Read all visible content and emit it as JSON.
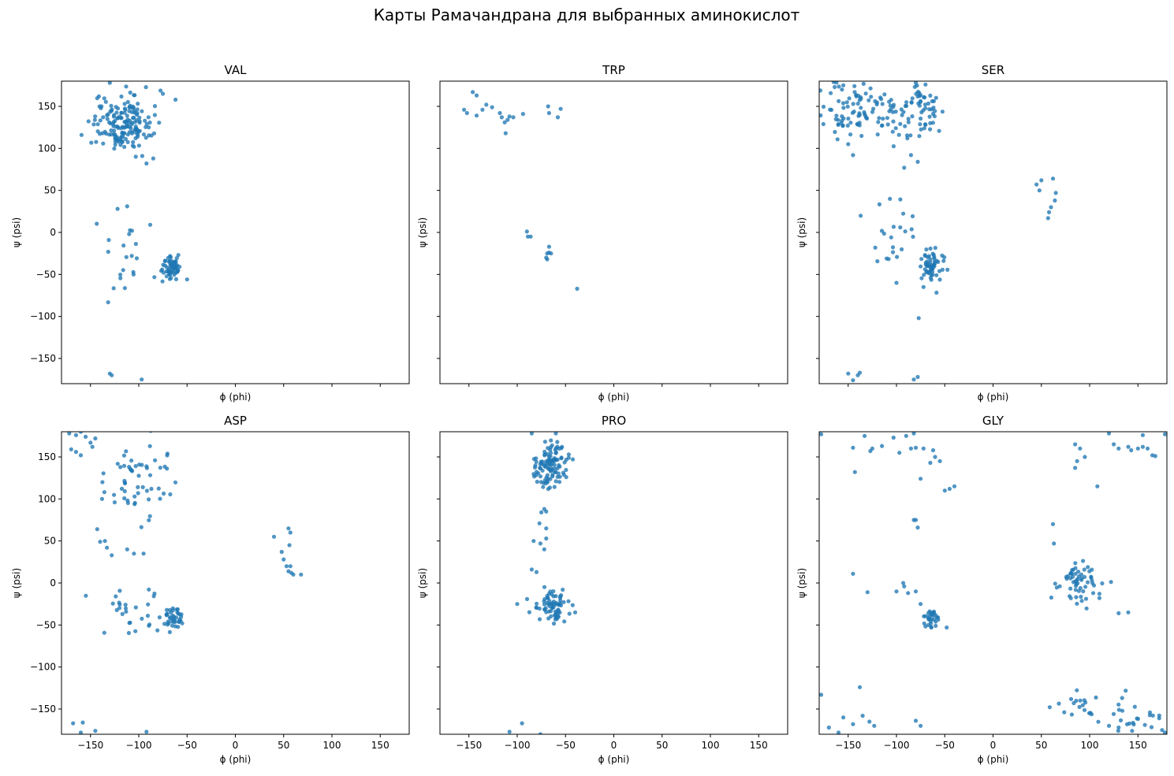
{
  "figure": {
    "title": "Карты Рамачандрана для выбранных аминокислот"
  },
  "colors": {
    "point": "#1f77b4",
    "axis": "#000000"
  },
  "chart_data": [
    {
      "type": "scatter",
      "title": "VAL",
      "xlabel": "ϕ (phi)",
      "ylabel": "ψ (psi)",
      "xlim": [
        -180,
        180
      ],
      "ylim": [
        -180,
        180
      ],
      "x_ticks": [
        -150,
        -100,
        -50,
        0,
        50,
        100,
        150
      ],
      "y_ticks": [
        -150,
        -100,
        -50,
        0,
        50,
        100,
        150
      ],
      "show_x_tick_labels": false,
      "show_y_tick_labels": true,
      "grid": false,
      "clusters": [
        {
          "phi": -118,
          "psi": 130,
          "sd_phi": 15,
          "sd_psi": 16,
          "n": 170
        },
        {
          "phi": -65,
          "psi": -42,
          "sd_phi": 6,
          "sd_psi": 7,
          "n": 60
        },
        {
          "phi": -115,
          "psi": -38,
          "sd_phi": 15,
          "sd_psi": 25,
          "n": 18
        }
      ],
      "points": [
        {
          "phi": -130,
          "psi": 178
        },
        {
          "phi": -75,
          "psi": 165
        },
        {
          "phi": -62,
          "psi": 158
        },
        {
          "phi": -92,
          "psi": 82
        },
        {
          "phi": -85,
          "psi": 88
        },
        {
          "phi": -122,
          "psi": 28
        },
        {
          "phi": -112,
          "psi": 31
        },
        {
          "phi": -110,
          "psi": -2
        },
        {
          "phi": -107,
          "psi": 2
        },
        {
          "phi": -131,
          "psi": -9
        },
        {
          "phi": -128,
          "psi": -170
        },
        {
          "phi": -130,
          "psi": -168
        },
        {
          "phi": -97,
          "psi": -175
        },
        {
          "phi": -50,
          "psi": -56
        }
      ]
    },
    {
      "type": "scatter",
      "title": "TRP",
      "xlabel": "ϕ (phi)",
      "ylabel": "ψ (psi)",
      "xlim": [
        -180,
        180
      ],
      "ylim": [
        -180,
        180
      ],
      "x_ticks": [
        -150,
        -100,
        -50,
        0,
        50,
        100,
        150
      ],
      "y_ticks": [
        -150,
        -100,
        -50,
        0,
        50,
        100,
        150
      ],
      "show_x_tick_labels": false,
      "show_y_tick_labels": false,
      "grid": false,
      "clusters": [],
      "points": [
        {
          "phi": -146,
          "psi": 167
        },
        {
          "phi": -142,
          "psi": 163
        },
        {
          "phi": -155,
          "psi": 146
        },
        {
          "phi": -152,
          "psi": 142
        },
        {
          "phi": -132,
          "psi": 152
        },
        {
          "phi": -126,
          "psi": 149
        },
        {
          "phi": -136,
          "psi": 146
        },
        {
          "phi": -142,
          "psi": 139
        },
        {
          "phi": -118,
          "psi": 142
        },
        {
          "phi": -116,
          "psi": 137
        },
        {
          "phi": -113,
          "psi": 131
        },
        {
          "phi": -110,
          "psi": 134
        },
        {
          "phi": -108,
          "psi": 138
        },
        {
          "phi": -104,
          "psi": 137
        },
        {
          "phi": -94,
          "psi": 141
        },
        {
          "phi": -112,
          "psi": 118
        },
        {
          "phi": -68,
          "psi": 150
        },
        {
          "phi": -67,
          "psi": 142
        },
        {
          "phi": -55,
          "psi": 147
        },
        {
          "phi": -58,
          "psi": 137
        },
        {
          "phi": -90,
          "psi": 1
        },
        {
          "phi": -89,
          "psi": -5
        },
        {
          "phi": -86,
          "psi": -5
        },
        {
          "phi": -67,
          "psi": -17
        },
        {
          "phi": -67,
          "psi": -24
        },
        {
          "phi": -69,
          "psi": -25
        },
        {
          "phi": -65,
          "psi": -25
        },
        {
          "phi": -70,
          "psi": -30
        },
        {
          "phi": -69,
          "psi": -32
        },
        {
          "phi": -38,
          "psi": -67
        }
      ]
    },
    {
      "type": "scatter",
      "title": "SER",
      "xlabel": "ϕ (phi)",
      "ylabel": "ψ (psi)",
      "xlim": [
        -180,
        180
      ],
      "ylim": [
        -180,
        180
      ],
      "x_ticks": [
        -150,
        -100,
        -50,
        0,
        50,
        100,
        150
      ],
      "y_ticks": [
        -150,
        -100,
        -50,
        0,
        50,
        100,
        150
      ],
      "show_x_tick_labels": false,
      "show_y_tick_labels": false,
      "grid": false,
      "clusters": [
        {
          "phi": -150,
          "psi": 150,
          "sd_phi": 14,
          "sd_psi": 18,
          "n": 70
        },
        {
          "phi": -105,
          "psi": 140,
          "sd_phi": 14,
          "sd_psi": 14,
          "n": 45
        },
        {
          "phi": -70,
          "psi": 150,
          "sd_phi": 10,
          "sd_psi": 16,
          "n": 45
        },
        {
          "phi": -65,
          "psi": -38,
          "sd_phi": 7,
          "sd_psi": 10,
          "n": 60
        },
        {
          "phi": -100,
          "psi": -5,
          "sd_phi": 15,
          "sd_psi": 22,
          "n": 22
        }
      ],
      "points": [
        {
          "phi": -165,
          "psi": 179
        },
        {
          "phi": -155,
          "psi": 175
        },
        {
          "phi": -80,
          "psi": 178
        },
        {
          "phi": -70,
          "psi": 176
        },
        {
          "phi": -150,
          "psi": 105
        },
        {
          "phi": -145,
          "psi": 92
        },
        {
          "phi": -85,
          "psi": 92
        },
        {
          "phi": -78,
          "psi": 84
        },
        {
          "phi": -92,
          "psi": 77
        },
        {
          "phi": 45,
          "psi": 57
        },
        {
          "phi": 50,
          "psi": 62
        },
        {
          "phi": 48,
          "psi": 50
        },
        {
          "phi": 62,
          "psi": 64
        },
        {
          "phi": 65,
          "psi": 47
        },
        {
          "phi": 64,
          "psi": 38
        },
        {
          "phi": 60,
          "psi": 30
        },
        {
          "phi": 58,
          "psi": 24
        },
        {
          "phi": 57,
          "psi": 17
        },
        {
          "phi": -100,
          "psi": -60
        },
        {
          "phi": -72,
          "psi": -65
        },
        {
          "phi": -77,
          "psi": -102
        },
        {
          "phi": -150,
          "psi": -168
        },
        {
          "phi": -140,
          "psi": -170
        },
        {
          "phi": -138,
          "psi": -167
        },
        {
          "phi": -145,
          "psi": -176
        },
        {
          "phi": -82,
          "psi": -175
        },
        {
          "phi": -78,
          "psi": -172
        }
      ]
    },
    {
      "type": "scatter",
      "title": "ASP",
      "xlabel": "ϕ (phi)",
      "ylabel": "ψ (psi)",
      "xlim": [
        -180,
        180
      ],
      "ylim": [
        -180,
        180
      ],
      "x_ticks": [
        -150,
        -100,
        -50,
        0,
        50,
        100,
        150
      ],
      "y_ticks": [
        -150,
        -100,
        -50,
        0,
        50,
        100,
        150
      ],
      "show_x_tick_labels": true,
      "show_y_tick_labels": true,
      "grid": false,
      "clusters": [
        {
          "phi": -95,
          "psi": 125,
          "sd_phi": 22,
          "sd_psi": 22,
          "n": 55
        },
        {
          "phi": -64,
          "psi": -40,
          "sd_phi": 5,
          "sd_psi": 7,
          "n": 35
        },
        {
          "phi": -105,
          "psi": -30,
          "sd_phi": 17,
          "sd_psi": 18,
          "n": 30
        }
      ],
      "points": [
        {
          "phi": -172,
          "psi": 178
        },
        {
          "phi": -165,
          "psi": 176
        },
        {
          "phi": -160,
          "psi": 180
        },
        {
          "phi": -155,
          "psi": 174
        },
        {
          "phi": -145,
          "psi": 172
        },
        {
          "phi": -150,
          "psi": 167
        },
        {
          "phi": -148,
          "psi": 162
        },
        {
          "phi": -170,
          "psi": 159
        },
        {
          "phi": -165,
          "psi": 156
        },
        {
          "phi": -160,
          "psi": 152
        },
        {
          "phi": -143,
          "psi": 64
        },
        {
          "phi": -140,
          "psi": 49
        },
        {
          "phi": -135,
          "psi": 50
        },
        {
          "phi": -133,
          "psi": 42
        },
        {
          "phi": -128,
          "psi": 33
        },
        {
          "phi": -112,
          "psi": 40
        },
        {
          "phi": -105,
          "psi": 35
        },
        {
          "phi": -95,
          "psi": 35
        },
        {
          "phi": -138,
          "psi": 100
        },
        {
          "phi": -125,
          "psi": 96
        },
        {
          "phi": 40,
          "psi": 55
        },
        {
          "phi": 55,
          "psi": 65
        },
        {
          "phi": 57,
          "psi": 60
        },
        {
          "phi": 56,
          "psi": 45
        },
        {
          "phi": 48,
          "psi": 37
        },
        {
          "phi": 50,
          "psi": 28
        },
        {
          "phi": 53,
          "psi": 20
        },
        {
          "phi": 57,
          "psi": 20
        },
        {
          "phi": 55,
          "psi": 14
        },
        {
          "phi": 58,
          "psi": 12
        },
        {
          "phi": 60,
          "psi": 10
        },
        {
          "phi": 68,
          "psi": 10
        },
        {
          "phi": -168,
          "psi": -167
        },
        {
          "phi": -158,
          "psi": -166
        },
        {
          "phi": -145,
          "psi": -176
        },
        {
          "phi": -160,
          "psi": -178
        },
        {
          "phi": -92,
          "psi": -177
        },
        {
          "phi": -55,
          "psi": -48
        }
      ]
    },
    {
      "type": "scatter",
      "title": "PRO",
      "xlabel": "ϕ (phi)",
      "ylabel": "ψ (psi)",
      "xlim": [
        -180,
        180
      ],
      "ylim": [
        -180,
        180
      ],
      "x_ticks": [
        -150,
        -100,
        -50,
        0,
        50,
        100,
        150
      ],
      "y_ticks": [
        -150,
        -100,
        -50,
        0,
        50,
        100,
        150
      ],
      "show_x_tick_labels": true,
      "show_y_tick_labels": false,
      "grid": false,
      "clusters": [
        {
          "phi": -66,
          "psi": 142,
          "sd_phi": 9,
          "sd_psi": 14,
          "n": 110
        },
        {
          "phi": -63,
          "psi": -30,
          "sd_phi": 9,
          "sd_psi": 10,
          "n": 70
        }
      ],
      "points": [
        {
          "phi": -72,
          "psi": 88
        },
        {
          "phi": -75,
          "psi": 84
        },
        {
          "phi": -70,
          "psi": 85
        },
        {
          "phi": -77,
          "psi": 71
        },
        {
          "phi": -70,
          "psi": 65
        },
        {
          "phi": -83,
          "psi": 50
        },
        {
          "phi": -76,
          "psi": 47
        },
        {
          "phi": -72,
          "psi": 40
        },
        {
          "phi": -70,
          "psi": 53
        },
        {
          "phi": -85,
          "psi": 16
        },
        {
          "phi": -80,
          "psi": 13
        },
        {
          "phi": -100,
          "psi": -25
        },
        {
          "phi": -40,
          "psi": -35
        },
        {
          "phi": -108,
          "psi": -177
        },
        {
          "phi": -95,
          "psi": -167
        },
        {
          "phi": -76,
          "psi": -180
        },
        {
          "phi": -85,
          "psi": 178
        },
        {
          "phi": -60,
          "psi": 178
        }
      ]
    },
    {
      "type": "scatter",
      "title": "GLY",
      "xlabel": "ϕ (phi)",
      "ylabel": "ψ (psi)",
      "xlim": [
        -180,
        180
      ],
      "ylim": [
        -180,
        180
      ],
      "x_ticks": [
        -150,
        -100,
        -50,
        0,
        50,
        100,
        150
      ],
      "y_ticks": [
        -150,
        -100,
        -50,
        0,
        50,
        100,
        150
      ],
      "show_x_tick_labels": true,
      "show_y_tick_labels": false,
      "grid": false,
      "clusters": [
        {
          "phi": 88,
          "psi": 0,
          "sd_phi": 12,
          "sd_psi": 13,
          "n": 60
        },
        {
          "phi": -63,
          "psi": -42,
          "sd_phi": 4,
          "sd_psi": 5,
          "n": 30
        },
        {
          "phi": 90,
          "psi": -145,
          "sd_phi": 12,
          "sd_psi": 8,
          "n": 18
        },
        {
          "phi": 150,
          "psi": -160,
          "sd_phi": 14,
          "sd_psi": 12,
          "n": 25
        }
      ],
      "points": [
        {
          "phi": -178,
          "psi": 177
        },
        {
          "phi": -145,
          "psi": 161
        },
        {
          "phi": -143,
          "psi": 132
        },
        {
          "phi": -133,
          "psi": 175
        },
        {
          "phi": -127,
          "psi": 157
        },
        {
          "phi": -125,
          "psi": 160
        },
        {
          "phi": -115,
          "psi": 163
        },
        {
          "phi": -103,
          "psi": 173
        },
        {
          "phi": -97,
          "psi": 155
        },
        {
          "phi": -90,
          "psi": 175
        },
        {
          "phi": -82,
          "psi": 178
        },
        {
          "phi": -85,
          "psi": 160
        },
        {
          "phi": -80,
          "psi": 161
        },
        {
          "phi": -72,
          "psi": 160
        },
        {
          "phi": -62,
          "psi": 158
        },
        {
          "phi": -60,
          "psi": 150
        },
        {
          "phi": -55,
          "psi": 145
        },
        {
          "phi": -75,
          "psi": 124
        },
        {
          "phi": -65,
          "psi": 143
        },
        {
          "phi": -50,
          "psi": 110
        },
        {
          "phi": -45,
          "psi": 112
        },
        {
          "phi": -40,
          "psi": 115
        },
        {
          "phi": -82,
          "psi": 75
        },
        {
          "phi": -80,
          "psi": 75
        },
        {
          "phi": -78,
          "psi": 66
        },
        {
          "phi": 85,
          "psi": 165
        },
        {
          "phi": 90,
          "psi": 160
        },
        {
          "phi": 95,
          "psi": 150
        },
        {
          "phi": 87,
          "psi": 145
        },
        {
          "phi": 85,
          "psi": 137
        },
        {
          "phi": 108,
          "psi": 115
        },
        {
          "phi": 120,
          "psi": 178
        },
        {
          "phi": 125,
          "psi": 165
        },
        {
          "phi": 130,
          "psi": 160
        },
        {
          "phi": 140,
          "psi": 162
        },
        {
          "phi": 143,
          "psi": 158
        },
        {
          "phi": 150,
          "psi": 160
        },
        {
          "phi": 155,
          "psi": 162
        },
        {
          "phi": 160,
          "psi": 160
        },
        {
          "phi": 165,
          "psi": 152
        },
        {
          "phi": 168,
          "psi": 151
        },
        {
          "phi": 155,
          "psi": 176
        },
        {
          "phi": 178,
          "psi": 177
        },
        {
          "phi": -145,
          "psi": 11
        },
        {
          "phi": -130,
          "psi": -11
        },
        {
          "phi": -100,
          "psi": -10
        },
        {
          "phi": -93,
          "psi": 0
        },
        {
          "phi": -92,
          "psi": -4
        },
        {
          "phi": -88,
          "psi": -12
        },
        {
          "phi": -80,
          "psi": -10
        },
        {
          "phi": -75,
          "psi": -25
        },
        {
          "phi": -48,
          "psi": -53
        },
        {
          "phi": 62,
          "psi": 70
        },
        {
          "phi": 63,
          "psi": 47
        },
        {
          "phi": 130,
          "psi": -36
        },
        {
          "phi": 140,
          "psi": -35
        },
        {
          "phi": -178,
          "psi": -133
        },
        {
          "phi": -138,
          "psi": -124
        },
        {
          "phi": -170,
          "psi": -172
        },
        {
          "phi": -155,
          "psi": -160
        },
        {
          "phi": -145,
          "psi": -168
        },
        {
          "phi": -135,
          "psi": -158
        },
        {
          "phi": -128,
          "psi": -165
        },
        {
          "phi": -123,
          "psi": -170
        },
        {
          "phi": -160,
          "psi": -178
        },
        {
          "phi": -80,
          "psi": -164
        },
        {
          "phi": -75,
          "psi": -170
        },
        {
          "phi": 120,
          "psi": -170
        },
        {
          "phi": 130,
          "psi": -172
        },
        {
          "phi": 175,
          "psi": -175
        },
        {
          "phi": 178,
          "psi": -178
        }
      ]
    }
  ]
}
